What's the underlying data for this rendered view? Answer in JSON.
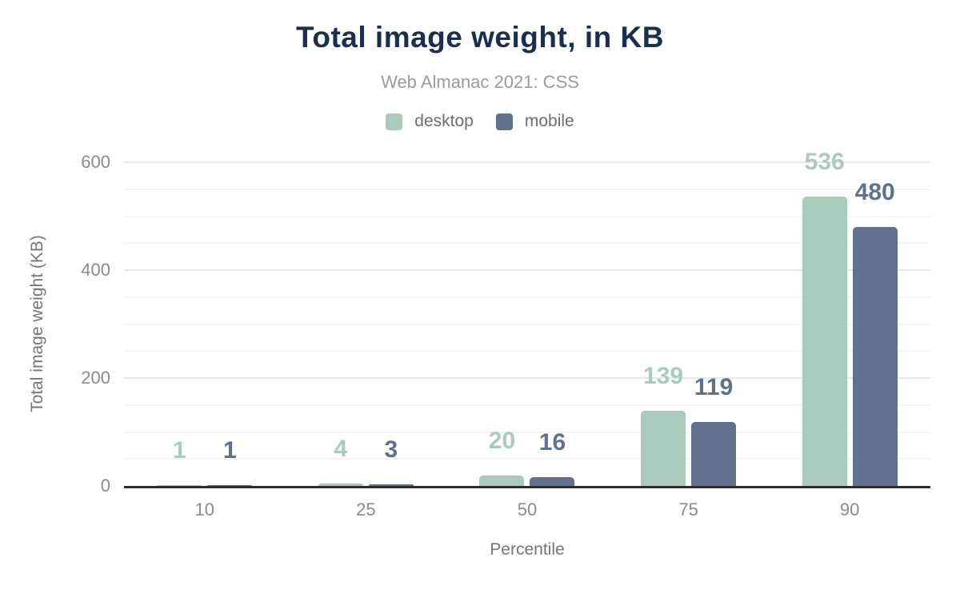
{
  "chart_data": {
    "type": "bar",
    "title": "Total image weight, in KB",
    "subtitle": "Web Almanac 2021: CSS",
    "categories": [
      "10",
      "25",
      "50",
      "75",
      "90"
    ],
    "series": [
      {
        "name": "desktop",
        "color": "#a9cbb9",
        "values": [
          1,
          4,
          20,
          139,
          536
        ]
      },
      {
        "name": "mobile",
        "color": "#5f718f",
        "values": [
          1,
          3,
          16,
          119,
          480
        ]
      }
    ],
    "xlabel": "Percentile",
    "ylabel": "Total image weight (KB)",
    "ylim": [
      0,
      600
    ],
    "yticks": [
      0,
      200,
      400,
      600
    ],
    "minor_grid_step": 50,
    "grid": true,
    "legend_position": "top"
  },
  "theme": {
    "title_color": "#1b2e4f",
    "subtitle_color": "#9b9b9b",
    "legend_text_color": "#6e6e6e",
    "tick_label_color": "#8b8b8b",
    "axis_title_color": "#757575",
    "axis_line_color": "#2f2f2f",
    "grid_major_color": "#e8e8e8",
    "grid_minor_color": "#f5f5f5",
    "background": "#ffffff"
  }
}
